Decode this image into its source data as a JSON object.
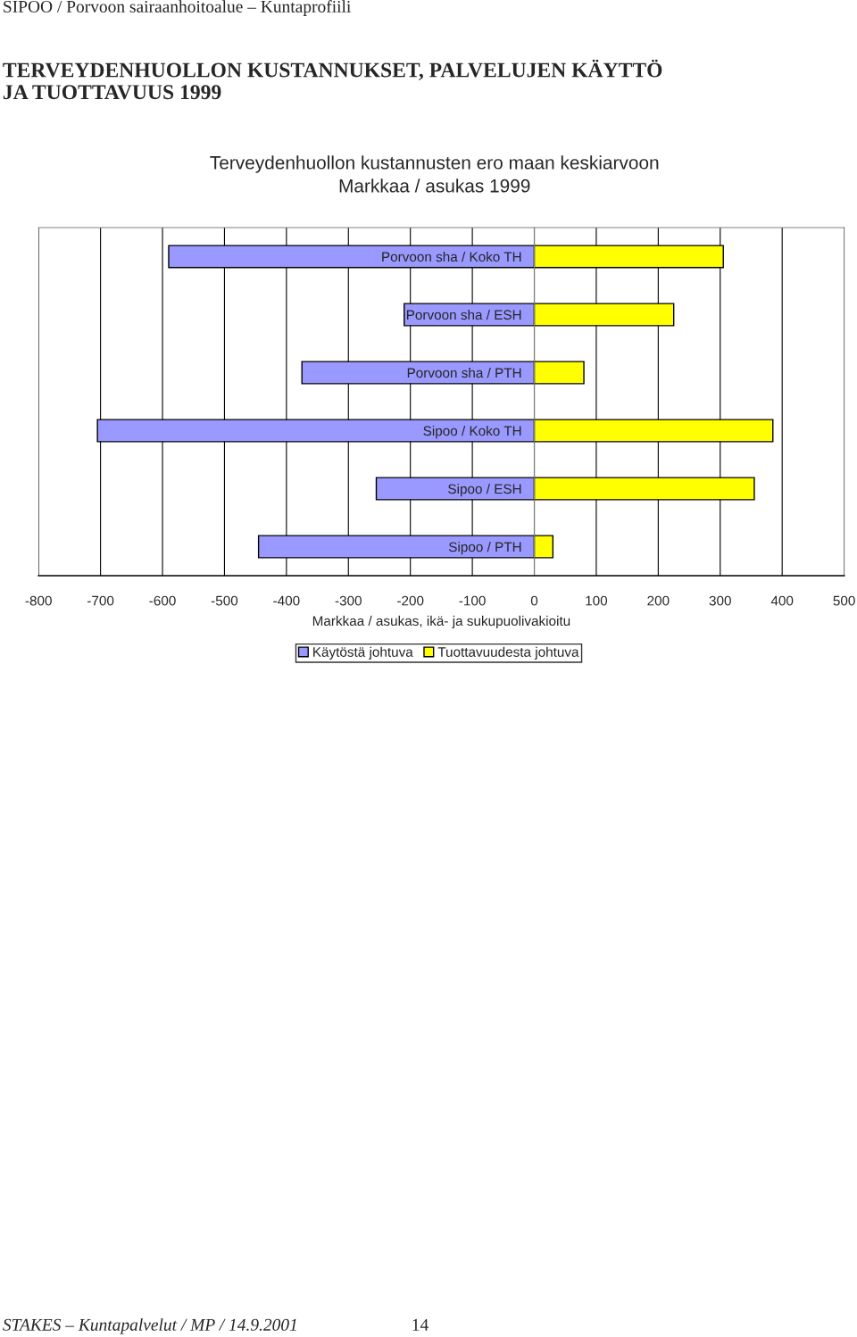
{
  "chart_data": {
    "type": "bar",
    "orientation": "horizontal",
    "stacked": true,
    "title": "Terveydenhuollon kustannusten ero maan keskiarvoon",
    "subtitle": "Markkaa / asukas 1999",
    "xlabel": "Markkaa / asukas, ikä- ja sukupuolivakioitu",
    "categories": [
      "Porvoon sha / Koko TH",
      "Porvoon sha / ESH",
      "Porvoon sha / PTH",
      "Sipoo / Koko TH",
      "Sipoo / ESH",
      "Sipoo / PTH"
    ],
    "series": [
      {
        "name": "Käytöstä johtuva",
        "color": "#9999ff",
        "values": [
          -590,
          -210,
          -375,
          -705,
          -255,
          -445
        ]
      },
      {
        "name": "Tuottavuudesta johtuva",
        "color": "#ffff00",
        "values": [
          305,
          225,
          80,
          385,
          355,
          30
        ]
      }
    ],
    "xlim": [
      -800,
      500
    ],
    "xticks": [
      -800,
      -700,
      -600,
      -500,
      -400,
      -300,
      -200,
      -100,
      0,
      100,
      200,
      300,
      400,
      500
    ],
    "grid": "x",
    "legend": "bottom",
    "annotations": [
      "SIPOO / Porvoon sairaanhoitoalue – Kuntaprofiili",
      "TERVEYDENHUOLLON KUSTANNUKSET, PALVELUJEN KÄYTTÖ\nJA TUOTTAVUUS 1999",
      "STAKES – Kuntapalvelut / MP / 14.9.2001",
      "14"
    ]
  }
}
